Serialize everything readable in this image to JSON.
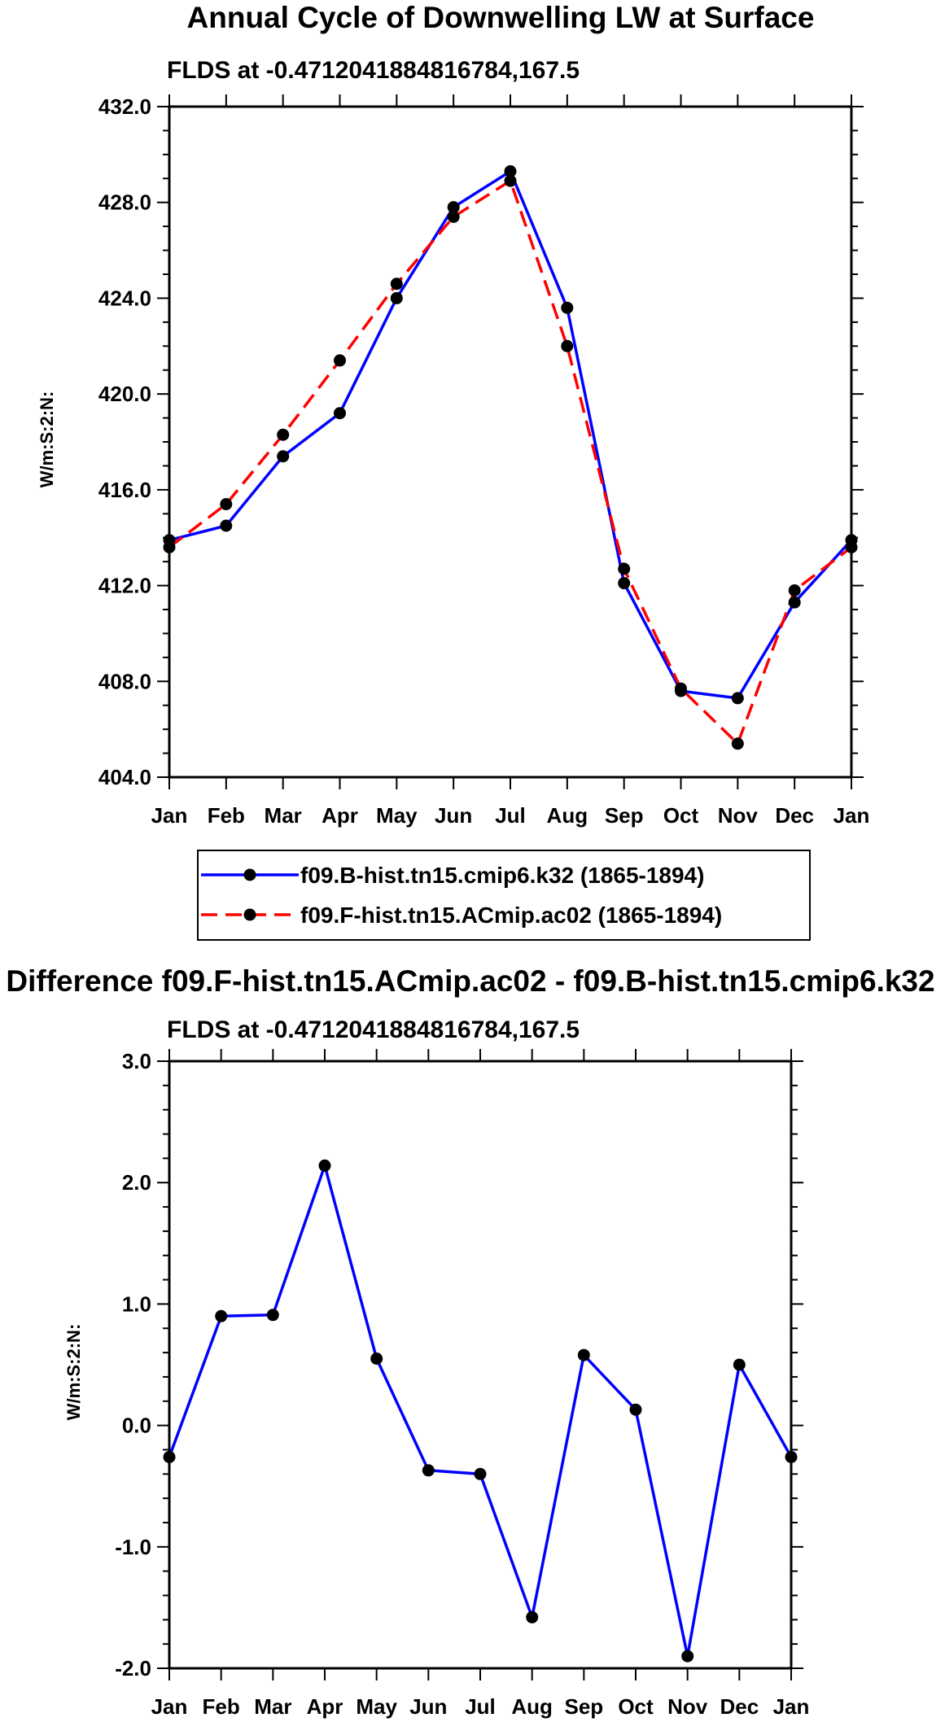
{
  "chart_data": [
    {
      "type": "line",
      "title": "Annual Cycle of Downwelling LW at Surface",
      "subtitle": "FLDS at -0.4712041884816784,167.5",
      "ylabel": "W/m:S:2:N:",
      "xlabel": "",
      "categories": [
        "Jan",
        "Feb",
        "Mar",
        "Apr",
        "May",
        "Jun",
        "Jul",
        "Aug",
        "Sep",
        "Oct",
        "Nov",
        "Dec",
        "Jan"
      ],
      "ylim": [
        404.0,
        432.0
      ],
      "yticks": [
        404.0,
        408.0,
        412.0,
        416.0,
        420.0,
        424.0,
        428.0,
        432.0
      ],
      "ytick_labels": [
        "404.0",
        "408.0",
        "412.0",
        "416.0",
        "420.0",
        "424.0",
        "428.0",
        "432.0"
      ],
      "ymajor_step": 4,
      "ysub_step": 1,
      "series": [
        {
          "name": "f09.B-hist.tn15.cmip6.k32 (1865-1894)",
          "color": "#0000ff",
          "dash": "solid",
          "values": [
            413.9,
            414.5,
            417.4,
            419.2,
            424.0,
            427.8,
            429.3,
            423.6,
            412.1,
            407.6,
            407.3,
            411.3,
            413.9
          ]
        },
        {
          "name": "f09.F-hist.tn15.ACmip.ac02 (1865-1894)",
          "color": "#ff0000",
          "dash": "dashed",
          "values": [
            413.6,
            415.4,
            418.3,
            421.4,
            424.6,
            427.4,
            428.9,
            422.0,
            412.7,
            407.7,
            405.4,
            411.8,
            413.6
          ]
        }
      ],
      "legend_position": "below"
    },
    {
      "type": "line",
      "title": "Difference f09.F-hist.tn15.ACmip.ac02 - f09.B-hist.tn15.cmip6.k32",
      "subtitle": "FLDS at -0.4712041884816784,167.5",
      "ylabel": "W/m:S:2:N:",
      "xlabel": "",
      "categories": [
        "Jan",
        "Feb",
        "Mar",
        "Apr",
        "May",
        "Jun",
        "Jul",
        "Aug",
        "Sep",
        "Oct",
        "Nov",
        "Dec",
        "Jan"
      ],
      "ylim": [
        -2.0,
        3.0
      ],
      "yticks": [
        -2.0,
        -1.0,
        0.0,
        1.0,
        2.0,
        3.0
      ],
      "ytick_labels": [
        "-2.0",
        "-1.0",
        "0.0",
        "1.0",
        "2.0",
        "3.0"
      ],
      "ymajor_step": 1,
      "ysub_step": 0.2,
      "series": [
        {
          "name": "Difference",
          "color": "#0000ff",
          "dash": "solid",
          "values": [
            -0.26,
            0.9,
            0.91,
            2.14,
            0.55,
            -0.37,
            -0.4,
            -1.58,
            0.58,
            0.13,
            -1.9,
            0.5,
            -0.26
          ]
        }
      ]
    }
  ]
}
